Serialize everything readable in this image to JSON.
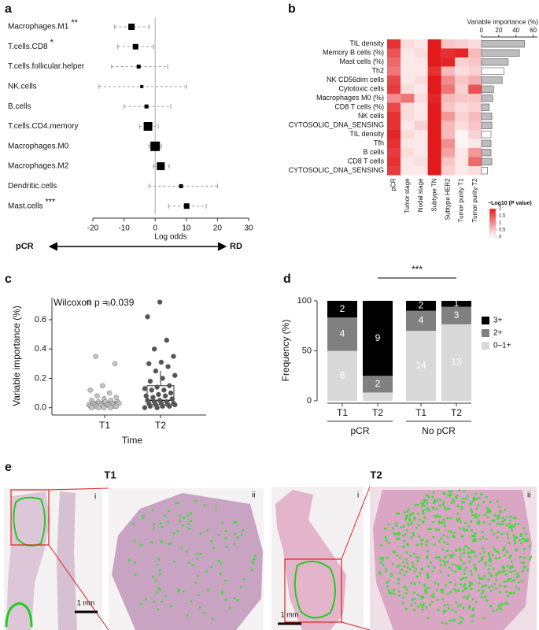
{
  "chart_data": [
    {
      "type": "forest",
      "panel": "a",
      "categories": [
        "Macrophages.M1",
        "T.cells.CD8",
        "T.cells.follicular.helper",
        "NK.cells",
        "B.cells",
        "T.cells.CD4.memory",
        "Macrophages.M0",
        "Macrophages.M2",
        "Dendritic.cells",
        "Mast.cells"
      ],
      "values": [
        -7.6,
        -6.3,
        -5.3,
        -4.3,
        -2.8,
        -2.3,
        0,
        1.8,
        8.3,
        10.1
      ],
      "lower": [
        -13,
        -12,
        -14,
        -18,
        -10,
        -5,
        -2,
        -0.5,
        -2,
        4.3
      ],
      "upper": [
        -2,
        -0.5,
        4,
        10,
        5,
        1,
        2,
        4.5,
        20,
        16.4
      ],
      "weights": [
        8,
        7,
        5,
        4,
        5,
        11,
        12,
        10,
        5,
        7
      ],
      "annotations": [
        "**",
        "*",
        null,
        null,
        null,
        null,
        null,
        null,
        null,
        "***"
      ],
      "color": "#000000",
      "xlim": [
        -20,
        30
      ],
      "xticks": [
        -20,
        -10,
        0,
        10,
        20,
        30
      ],
      "xlabel": "Log odds",
      "arrow_labels": [
        "pCR",
        "RD"
      ]
    },
    {
      "type": "heatmap",
      "panel": "b",
      "rows": [
        "TIL density",
        "Memory B cells (%)",
        "Mast cells (%)",
        "Th2",
        "NK CD56dim cells",
        "Cytotoxic cells",
        "Macrophages M0 (%)",
        "CD8 T cells (%)",
        "NK cells",
        "CYTOSOLIC_DNA_SENSING",
        "TIL density",
        "Tfh",
        "B cells",
        "CD8 T cells",
        "CYTOSOLIC_DNA_SENSING"
      ],
      "columns": [
        "pCR",
        "Tumor stage",
        "Nodal stage",
        "Subtype TN",
        "Subtype HER2",
        "Tumor purity T1",
        "Tumor purity T2"
      ],
      "matrix": [
        [
          1.8,
          0.3,
          0.2,
          2.0,
          0.5,
          0.4,
          0.3
        ],
        [
          1.5,
          0.2,
          0.3,
          2.0,
          1.8,
          1.9,
          0.6
        ],
        [
          1.3,
          0.2,
          0.2,
          2.0,
          1.9,
          0.4,
          0.5
        ],
        [
          1.2,
          0.2,
          0.2,
          1.8,
          0.6,
          0.3,
          0.4
        ],
        [
          1.6,
          0.2,
          0.3,
          2.0,
          1.0,
          0.5,
          0.7
        ],
        [
          1.7,
          0.3,
          0.2,
          2.0,
          1.2,
          0.4,
          1.5
        ],
        [
          1.0,
          1.2,
          0.3,
          1.9,
          0.6,
          0.5,
          0.5
        ],
        [
          1.6,
          0.3,
          0.2,
          2.0,
          0.5,
          0.3,
          0.4
        ],
        [
          1.8,
          0.3,
          0.2,
          2.0,
          0.9,
          0.4,
          0.6
        ],
        [
          1.8,
          0.2,
          0.4,
          2.0,
          0.6,
          0.3,
          0.5
        ],
        [
          1.9,
          0.3,
          0.2,
          2.0,
          0.6,
          0.1,
          0.4
        ],
        [
          1.8,
          0.2,
          0.2,
          2.0,
          1.0,
          0.1,
          0.2
        ],
        [
          1.7,
          0.3,
          0.2,
          2.0,
          0.8,
          0.2,
          0.9
        ],
        [
          1.8,
          0.2,
          0.3,
          2.0,
          0.5,
          0.2,
          1.3
        ],
        [
          1.7,
          0.2,
          0.2,
          2.0,
          0.4,
          0.2,
          0.3
        ]
      ],
      "clim": [
        0,
        2
      ],
      "color_low": "#ffffff",
      "color_high": "#e31a1c",
      "legend_title": "−Log10 (P value)",
      "legend_ticks": [
        0,
        0.5,
        1,
        1.5,
        2
      ],
      "bar_title": "Variable importance (%)",
      "bar_values": [
        50,
        44,
        31,
        26,
        24,
        14,
        13,
        9,
        12,
        12,
        11,
        11,
        11,
        12,
        7
      ],
      "bar_colors": [
        "#bdbdbd",
        "#bdbdbd",
        "#bdbdbd",
        "#ffffff",
        "#bdbdbd",
        "#bdbdbd",
        "#bdbdbd",
        "#bdbdbd",
        "#bdbdbd",
        "#bdbdbd",
        "#ffffff",
        "#bdbdbd",
        "#bdbdbd",
        "#bdbdbd",
        "#ffffff"
      ],
      "bar_xlim": [
        0,
        65
      ],
      "bar_xticks": [
        0,
        20,
        40,
        60
      ]
    },
    {
      "type": "box",
      "panel": "c",
      "categories": [
        "T1",
        "T2"
      ],
      "points": [
        [
          0.72,
          0.71,
          0.35,
          0.3,
          0.15,
          0.12,
          0.1,
          0.08,
          0.07,
          0.06,
          0.05,
          0.05,
          0.04,
          0.04,
          0.04,
          0.03,
          0.03,
          0.03,
          0.03,
          0.02,
          0.02,
          0.02,
          0.02,
          0.02,
          0.02,
          0.01,
          0.01,
          0.01,
          0.01,
          0.01,
          0.01,
          0.01,
          0.0,
          0.0,
          0.0,
          0.0
        ],
        [
          0.72,
          0.62,
          0.46,
          0.4,
          0.35,
          0.31,
          0.3,
          0.28,
          0.25,
          0.22,
          0.2,
          0.18,
          0.15,
          0.14,
          0.13,
          0.12,
          0.12,
          0.1,
          0.09,
          0.08,
          0.08,
          0.07,
          0.06,
          0.05,
          0.05,
          0.04,
          0.04,
          0.03,
          0.03,
          0.03,
          0.02,
          0.02,
          0.02,
          0.01,
          0.01,
          0.01,
          0.0,
          0.0
        ]
      ],
      "point_colors": [
        "#c4c4c4",
        "#555555"
      ],
      "boxes": [
        {
          "min": 0,
          "q1": 0.01,
          "median": 0.02,
          "q3": 0.04,
          "max": 0.08
        },
        {
          "min": 0,
          "q1": 0.02,
          "median": 0.05,
          "q3": 0.15,
          "max": 0.25
        }
      ],
      "annotation": "Wilcoxon p = 0.039",
      "xlabel": "Time",
      "ylabel": "Variable importance (%)",
      "ylim": [
        -0.05,
        0.75
      ],
      "yticks": [
        {
          "value": 0,
          "label": "0.0"
        },
        {
          "value": 0.2,
          "label": "0.2"
        },
        {
          "value": 0.4,
          "label": "0.4"
        },
        {
          "value": 0.6,
          "label": "0.6"
        }
      ]
    },
    {
      "type": "stacked_bar",
      "panel": "d",
      "categories": [
        "T1",
        "T2",
        "T1",
        "T2"
      ],
      "groups": [
        "pCR",
        "No pCR"
      ],
      "series": [
        {
          "name": "0–1+",
          "color": "#d9d9d9",
          "values": [
            50,
            8.3,
            70,
            76.5
          ],
          "counts": [
            6,
            null,
            14,
            13
          ]
        },
        {
          "name": "2+",
          "color": "#808080",
          "values": [
            33.3,
            16.7,
            20,
            17.6
          ],
          "counts": [
            4,
            2,
            4,
            3
          ]
        },
        {
          "name": "3+",
          "color": "#000000",
          "values": [
            16.7,
            75,
            10,
            5.9
          ],
          "counts": [
            2,
            9,
            2,
            1
          ]
        }
      ],
      "ylim": [
        0,
        100
      ],
      "yticks": [
        0,
        50,
        100
      ],
      "ylabel": "Frequency (%)",
      "annotation": "***"
    }
  ],
  "figure_e": {
    "panel": "e",
    "images": [
      {
        "title": "T1",
        "views": [
          "i",
          "ii"
        ],
        "scale_bar": "1 mm"
      },
      {
        "title": "T2",
        "views": [
          "i",
          "ii"
        ],
        "scale_bar": "1 mm"
      }
    ]
  }
}
